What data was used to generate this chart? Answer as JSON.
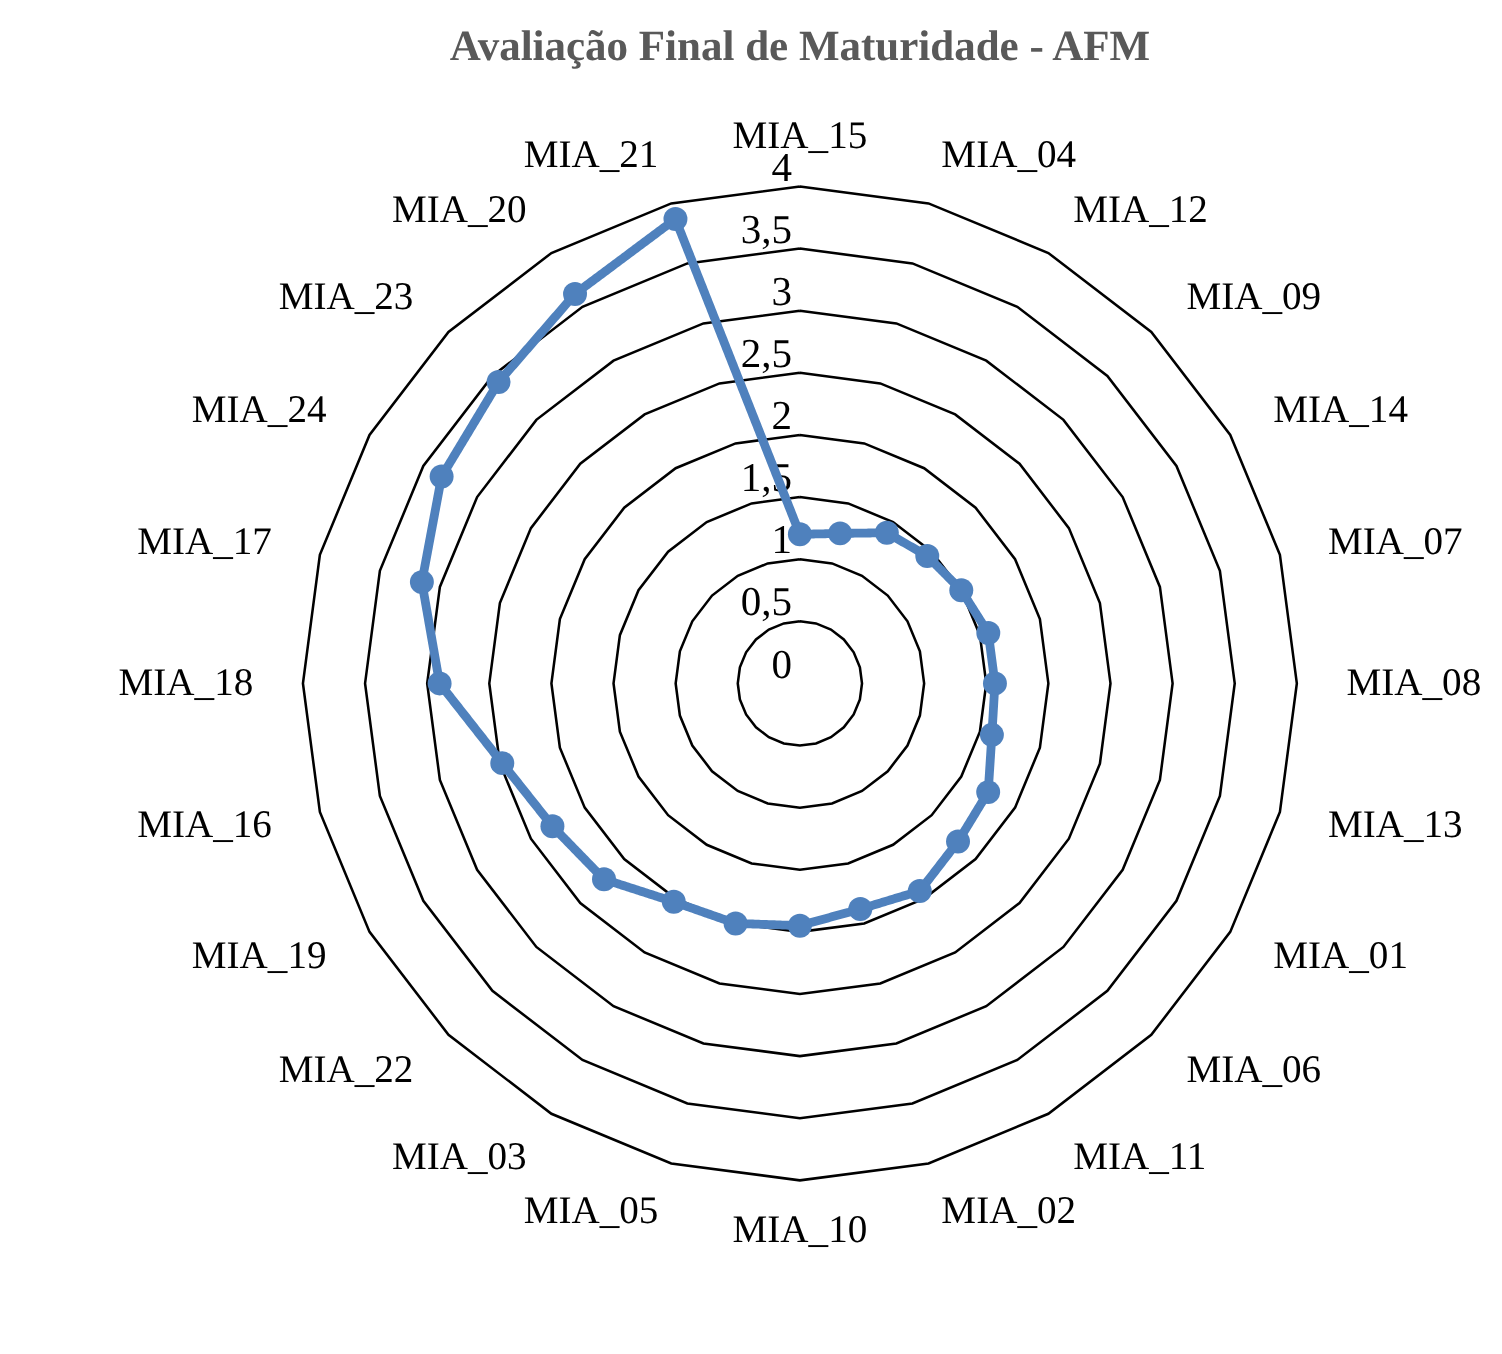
{
  "chart_data": {
    "type": "radar",
    "title": "Avaliação Final de Maturidade - AFM",
    "categories": [
      "MIA_15",
      "MIA_04",
      "MIA_12",
      "MIA_09",
      "MIA_14",
      "MIA_07",
      "MIA_08",
      "MIA_13",
      "MIA_01",
      "MIA_06",
      "MIA_11",
      "MIA_02",
      "MIA_10",
      "MIA_05",
      "MIA_03",
      "MIA_22",
      "MIA_19",
      "MIA_16",
      "MIA_18",
      "MIA_17",
      "MIA_24",
      "MIA_23",
      "MIA_20",
      "MIA_21"
    ],
    "series": [
      {
        "color": "#4f81bd",
        "values": [
          1.2,
          1.25,
          1.4,
          1.45,
          1.5,
          1.57,
          1.57,
          1.6,
          1.75,
          1.8,
          1.93,
          1.88,
          1.95,
          2.0,
          2.03,
          2.23,
          2.3,
          2.48,
          2.9,
          3.15,
          3.33,
          3.43,
          3.62,
          3.87
        ]
      }
    ],
    "ylim": [
      0,
      4
    ],
    "yticks": [
      0,
      {
        "value": 0.5,
        "label": "0,5"
      },
      1,
      {
        "value": 1.5,
        "label": "1,5"
      },
      2,
      {
        "value": 2.5,
        "label": "2,5"
      },
      3,
      {
        "value": 3.5,
        "label": "3,5"
      },
      4
    ],
    "grid": true,
    "marker": "circle",
    "line_style": "solid"
  }
}
